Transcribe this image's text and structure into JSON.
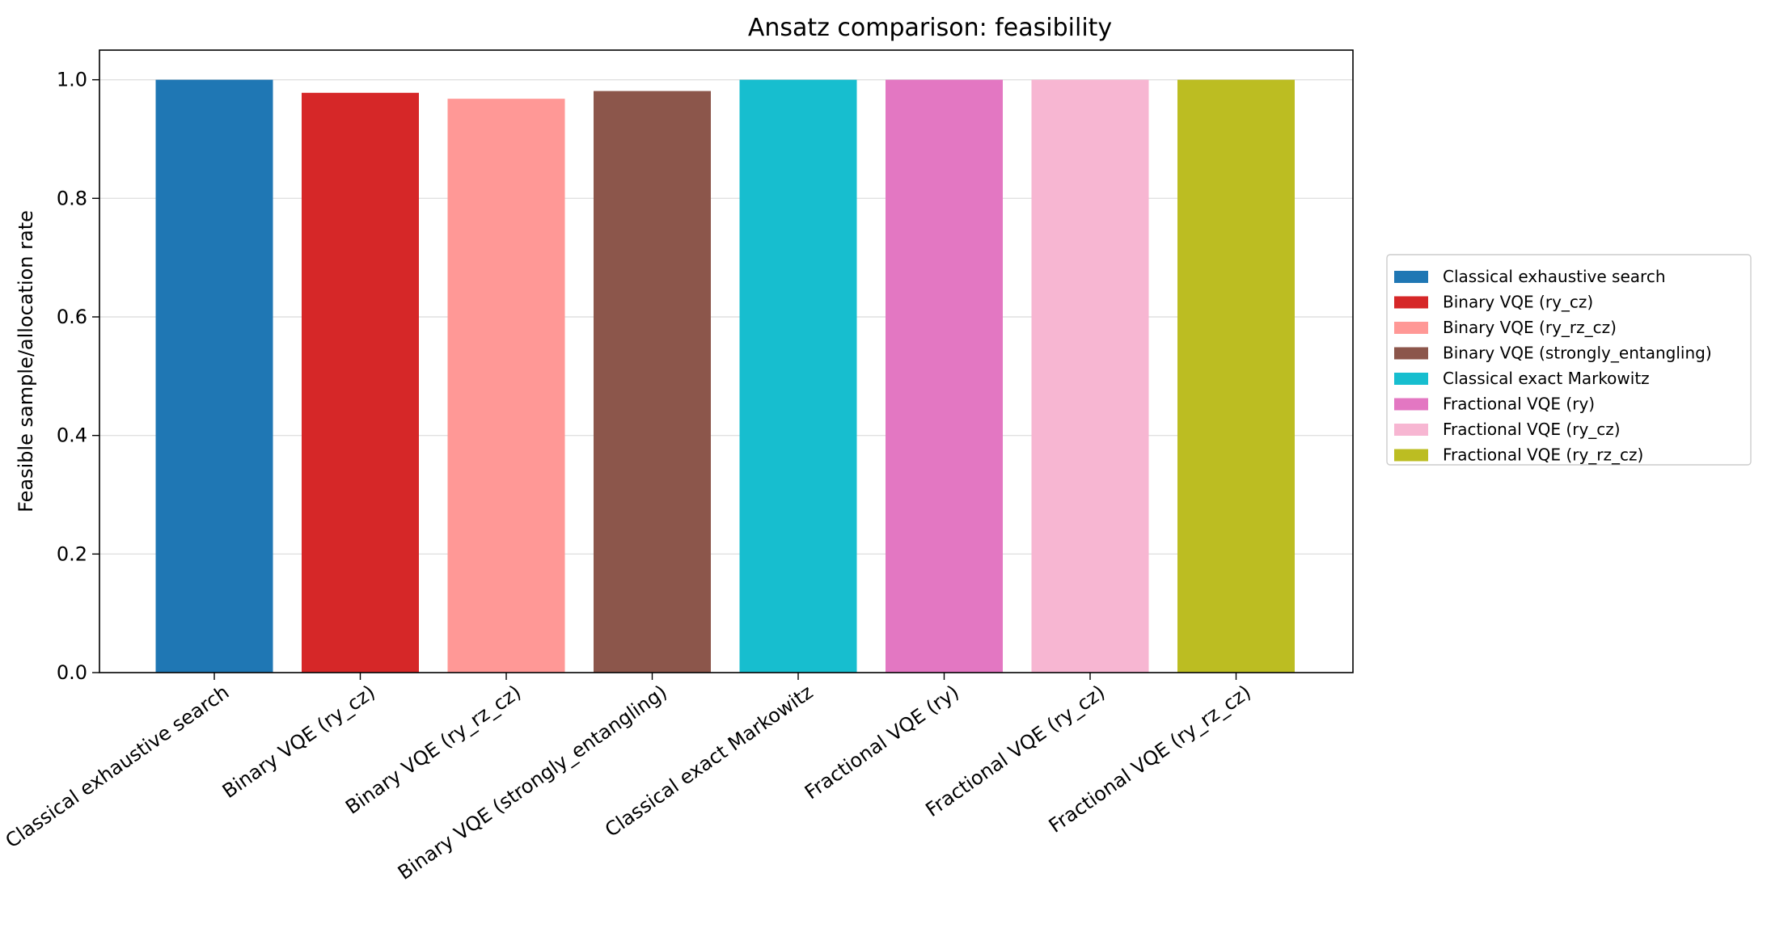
{
  "chart_data": {
    "type": "bar",
    "title": "Ansatz comparison: feasibility",
    "xlabel": "",
    "ylabel": "Feasible sample/allocation rate",
    "ylim": [
      0,
      1.05
    ],
    "yticks": [
      "0.0",
      "0.2",
      "0.4",
      "0.6",
      "0.8",
      "1.0"
    ],
    "grid": "horizontal",
    "legend_position": "right",
    "categories": [
      "Classical exhaustive search",
      "Binary VQE (ry_cz)",
      "Binary VQE (ry_rz_cz)",
      "Binary VQE (strongly_entangling)",
      "Classical exact Markowitz",
      "Fractional VQE (ry)",
      "Fractional VQE (ry_cz)",
      "Fractional VQE (ry_rz_cz)"
    ],
    "values": [
      1.0,
      0.978,
      0.968,
      0.981,
      1.0,
      1.0,
      1.0,
      1.0
    ],
    "colors": [
      "#1f77b4",
      "#d62728",
      "#ff9896",
      "#8c564b",
      "#17becf",
      "#e377c2",
      "#f7b6d2",
      "#bcbd22"
    ],
    "legend": [
      "Classical exhaustive search",
      "Binary VQE (ry_cz)",
      "Binary VQE (ry_rz_cz)",
      "Binary VQE (strongly_entangling)",
      "Classical exact Markowitz",
      "Fractional VQE (ry)",
      "Fractional VQE (ry_cz)",
      "Fractional VQE (ry_rz_cz)"
    ]
  }
}
